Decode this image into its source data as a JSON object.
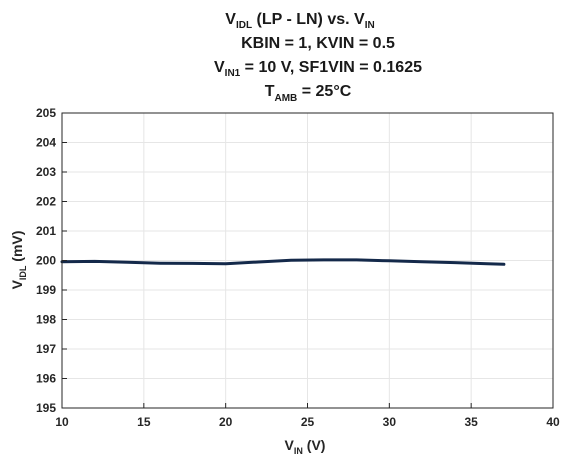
{
  "chart_data": {
    "type": "line",
    "title": {
      "line1": {
        "a": "V",
        "a_sub": "IDL",
        "b": " (LP - LN) vs. V",
        "b_sub": "IN"
      },
      "line2": "KBIN = 1, KVIN = 0.5",
      "line3": {
        "a": "V",
        "a_sub": "IN1",
        "b": " = 10 V, SF1VIN = 0.1625"
      },
      "line4": {
        "a": "T",
        "a_sub": "AMB",
        "b": " = 25°C"
      }
    },
    "xlabel": {
      "main": "V",
      "sub": "IN",
      "unit": " (V)"
    },
    "ylabel": {
      "main": "V",
      "sub": "IDL",
      "unit": " (mV)"
    },
    "xlim": [
      10,
      40
    ],
    "ylim": [
      195,
      205
    ],
    "xticks": [
      "10",
      "15",
      "20",
      "25",
      "30",
      "35",
      "40"
    ],
    "yticks": [
      "195",
      "196",
      "197",
      "198",
      "199",
      "200",
      "201",
      "202",
      "203",
      "204",
      "205"
    ],
    "grid": true,
    "series": [
      {
        "color": "#14294a",
        "x": [
          10,
          12,
          14,
          16,
          18,
          20,
          22,
          24,
          26,
          28,
          30,
          32,
          34,
          36,
          37
        ],
        "y": [
          199.96,
          199.97,
          199.94,
          199.91,
          199.9,
          199.89,
          199.95,
          200.01,
          200.02,
          200.02,
          199.99,
          199.96,
          199.93,
          199.89,
          199.87
        ]
      }
    ]
  }
}
